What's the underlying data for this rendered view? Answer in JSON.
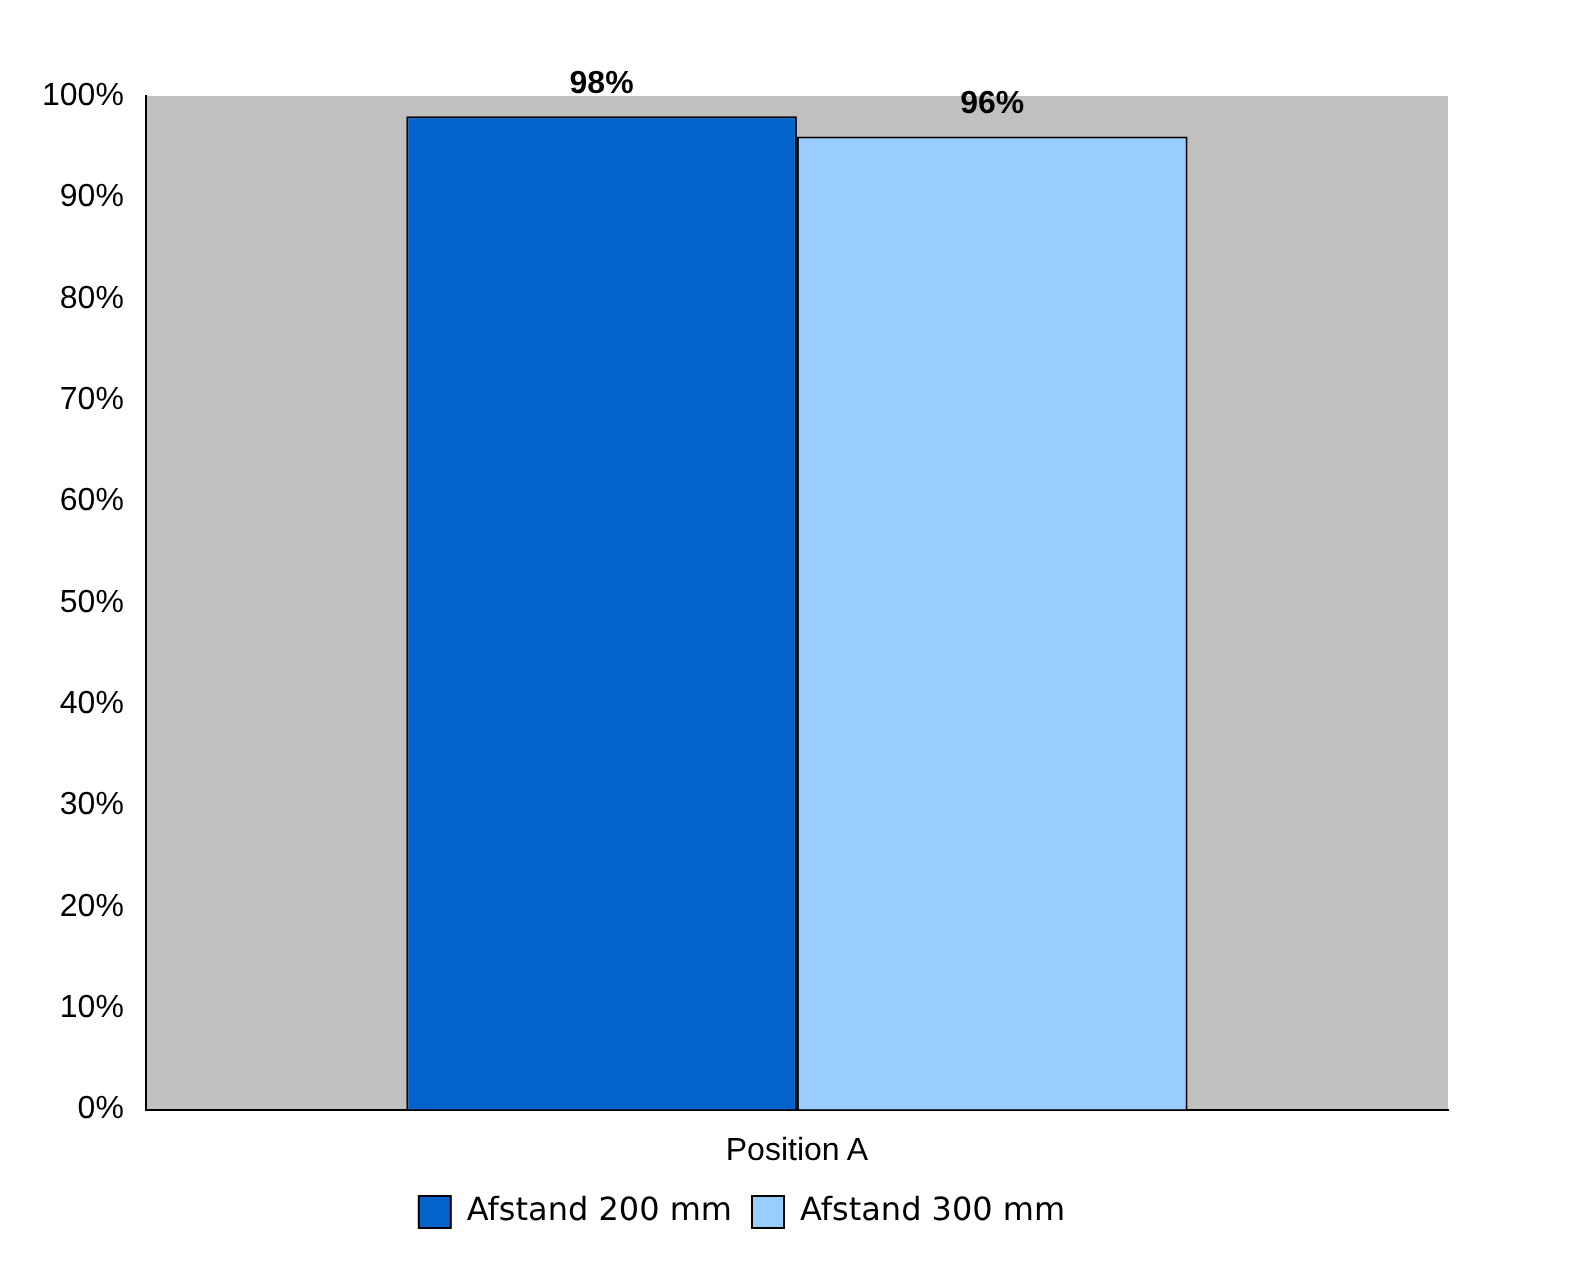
{
  "chart_data": {
    "type": "bar",
    "categories": [
      "Position A"
    ],
    "series": [
      {
        "name": "Afstand 200 mm",
        "color": "#0563cc",
        "values": [
          98
        ],
        "value_labels": [
          "98%"
        ]
      },
      {
        "name": "Afstand 300 mm",
        "color": "#99ccff",
        "values": [
          96
        ],
        "value_labels": [
          "96%"
        ]
      }
    ],
    "ylim": [
      0,
      100
    ],
    "yticks": [
      {
        "value": 0,
        "label": "0%"
      },
      {
        "value": 10,
        "label": "10%"
      },
      {
        "value": 20,
        "label": "20%"
      },
      {
        "value": 30,
        "label": "30%"
      },
      {
        "value": 40,
        "label": "40%"
      },
      {
        "value": 50,
        "label": "50%"
      },
      {
        "value": 60,
        "label": "60%"
      },
      {
        "value": 70,
        "label": "70%"
      },
      {
        "value": 80,
        "label": "80%"
      },
      {
        "value": 90,
        "label": "90%"
      },
      {
        "value": 100,
        "label": "100%"
      }
    ],
    "grid": false,
    "legend": "bottom"
  }
}
